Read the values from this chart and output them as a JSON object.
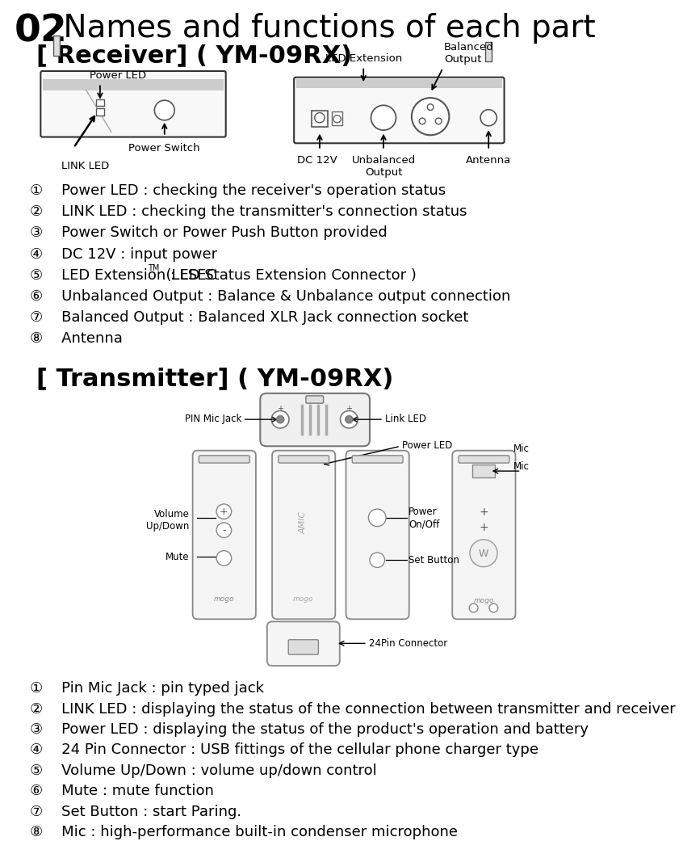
{
  "title_num": "02",
  "title_text": " Names and functions of each part",
  "receiver_section": "[ Receiver] ( YM-09RX)",
  "transmitter_section": "[ Transmitter] ( YM-09RX)",
  "receiver_items": [
    "①    Power LED : checking the receiver's operation status",
    "②    LINK LED : checking the transmitter's connection status",
    "③    Power Switch or Power Push Button provided",
    "④    DC 12V : input power",
    "⑤    LED Extension : LSEC™  (LED Status Extension Connector )",
    "⑥    Unbalanced Output : Balance & Unbalance output connection",
    "⑦    Balanced Output : Balanced XLR Jack connection socket",
    "⑧    Antenna"
  ],
  "transmitter_items": [
    "①    Pin Mic Jack : pin typed jack",
    "②    LINK LED : displaying the status of the connection between transmitter and receiver",
    "③    Power LED : displaying the status of the product's operation and battery",
    "④    24 Pin Connector : USB fittings of the cellular phone charger type",
    "⑤    Volume Up/Down : volume up/down control",
    "⑥    Mute : mute function",
    "⑦    Set Button : start Paring.",
    "⑧    Mic : high-performance built-in condenser microphone"
  ],
  "bg_color": "#ffffff",
  "text_color": "#000000",
  "title_num_font": 32,
  "title_font": 26,
  "section_font": 20,
  "item_font": 13,
  "diagram_color": "#aaaaaa",
  "diagram_face": "#f5f5f5"
}
